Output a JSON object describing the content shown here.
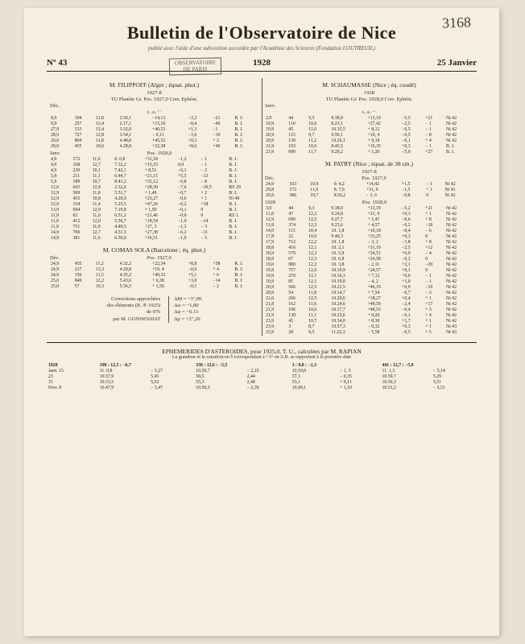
{
  "handwritten_number": "3168",
  "masthead": {
    "title": "Bulletin de l'Observatoire de Nice",
    "subtitle": "publié avec l'aide d'une subvention accordée par l'Académie des Sciences (Fondation LOUTREUIL)",
    "stamp_line1": "OBSERVATOIRE",
    "stamp_line2": "DE PARIS",
    "issue_no": "Nº 43",
    "year": "1928",
    "date": "25 Janvier"
  },
  "left_col": {
    "observer": "M. FILIPPOFF (Alger ; équat. phot.)",
    "year1": "1927-8",
    "header1": "TU  Planète  Gr.      Pos. 1927,0        Corr.     Ephém.",
    "month1": "Déc.",
    "units1": "h. m.       °   ′",
    "rows1": [
      [
        "9,9",
        "194",
        "11,8",
        "2.50,1",
        "−14,13",
        "−3,2",
        "−21",
        "B. J."
      ],
      [
        "9,9",
        "257",
        "13,4",
        "2.17,1",
        "+15,10",
        "−8,4",
        "−49",
        "B. J."
      ],
      [
        "27,9",
        "533",
        "13,4",
        "3.32,0",
        "+40,53",
        "+1,3",
        "−1",
        "B. J."
      ],
      [
        "28,9",
        "727",
        "12,8",
        "3.54,1",
        "− 0,11",
        "−3,6",
        "−10",
        "B. J."
      ],
      [
        "29,0",
        "804",
        "11,8",
        "4.48,0",
        "+45,52",
        "+0,3",
        "+ 2",
        "B. J."
      ],
      [
        "29,0",
        "455",
        "10,6",
        "4.28,8",
        "+22,38",
        "+8,6",
        "+49",
        "B. J."
      ]
    ],
    "month2": "Janv.",
    "poslabel2": "Pos. 1928,0",
    "rows2": [
      [
        "4,9",
        "172",
        "11,6",
        "8. 0,8",
        "+31,18",
        "−1,2",
        "− 1",
        "B. J."
      ],
      [
        "4,9",
        "168",
        "12,7",
        "7.32,2",
        "+15,15",
        "0,0",
        "− 1",
        "B. J."
      ],
      [
        "4,9",
        "230",
        "10,1",
        "7.42,1",
        "+ 8,51",
        "−6,1",
        "− 2",
        "B. J."
      ],
      [
        "5,9",
        "211",
        "11,1",
        "6.44,7",
        "+21,15",
        "+5,5",
        "−13",
        "B. J."
      ],
      [
        "5,9",
        "189",
        "10,7",
        "8.41,2",
        "+32,12",
        "−0,8",
        "− 8",
        "B. J."
      ],
      [
        "12,0",
        "665",
        "12,8",
        "2.32,6",
        "+28,39",
        "−7,6",
        "−10,5",
        "BZ 29"
      ],
      [
        "12,9",
        "509",
        "11,8",
        "5.51,7",
        "+ 1,49",
        "−0,7",
        "+ 2",
        "B. J."
      ],
      [
        "12,9",
        "455",
        "10,8",
        "4.20,9",
        "+23,27",
        "−0,6",
        "+ 1",
        "Ni 49"
      ],
      [
        "12,9",
        "154",
        "11,4",
        "5.25,5",
        "+47,26",
        "−0,2",
        "+18",
        "B. J."
      ],
      [
        "13,9",
        "694",
        "12,9",
        "7.19,8",
        "+ 1,50",
        "−0,1",
        "0",
        "B. J."
      ],
      [
        "11,9",
        "62",
        "11,0",
        "6.51,2",
        "+21,46",
        "−0,0",
        "0",
        "RZ 1"
      ],
      [
        "11,9",
        "412",
        "12,0",
        "5.36,7",
        "+18,54",
        "−1,9",
        "−14",
        "B. J."
      ],
      [
        "11,9",
        "751",
        "11,0",
        "4.49,5",
        "+27, 3",
        "−1,3",
        "− 3",
        "B. J."
      ],
      [
        "14,9",
        "706",
        "12,7",
        "4.51,3",
        "+27,38",
        "−6,2",
        "−11",
        "B. J."
      ],
      [
        "14,9",
        "381",
        "11,6",
        "6.50,0",
        "+16,51",
        "−1,9",
        "− 5",
        "B. J."
      ]
    ],
    "observer2": "M. COMAS SOLA (Barcelone ; éq. phot.)",
    "month3": "Déc.",
    "poslabel3": "Pos. 1927,0",
    "rows3": [
      [
        "24,9",
        "455",
        "11,2",
        "4.32,2",
        "+22,34",
        "+8,8",
        "+58",
        "R. J."
      ],
      [
        "24,9",
        "237",
        "13,3",
        "4.20,8",
        "+19, 4",
        "−0,0",
        "+ 4",
        "B. J."
      ],
      [
        "24,9",
        "150",
        "11,5",
        "4.35,2",
        "+49,32",
        "+5,1",
        "+ 6",
        "B. J."
      ],
      [
        "25,0",
        "849",
        "12,2",
        "5.43,6",
        "+ 6,38",
        "+3,0",
        "−14",
        "B. J."
      ],
      [
        "25,0",
        "57",
        "10,3",
        "5.56,5",
        "+ 1,56",
        "−0,1",
        "− 2",
        "B. J."
      ]
    ],
    "corrections": {
      "line1": "Corrections approchées",
      "line2": "des éléments (K. P. 1925)",
      "line3": "de 976",
      "line4": "par M. GONNESSIAT",
      "vals": [
        "ΔM = +1º,90",
        "Δω = −1,80",
        "Δφ = −0.13",
        "Δμ = +2″,20"
      ]
    }
  },
  "right_col": {
    "observer": "M. SCHAUMASSE (Nice ; éq. coudé)",
    "year1": "1928",
    "header1": "TU  Planète  Gr.      Pos. 1928,0        Corr.     Ephém.",
    "month1": "Janv.",
    "units1": "h. m.       °   ′",
    "rows1": [
      [
        "2,9",
        "44",
        "9,5",
        "9.38,0",
        "+13,19",
        "−5,5",
        "+21",
        "Ni 42"
      ],
      [
        "19,9",
        "110",
        "10,6",
        "8.23,1",
        "+27,42",
        "−2,5",
        "− 1",
        "Ni 42"
      ],
      [
        "19,9",
        "45",
        "11,0",
        "10.35,5",
        "+ 8,12",
        "−6,5",
        "− 1",
        "Ni 42"
      ],
      [
        "20,9",
        "115",
        "9,7",
        "9.56,1",
        "+10, 4",
        "−0,5",
        "− 8",
        "Ni 42"
      ],
      [
        "20,9",
        "130",
        "11,2",
        "10.26,1",
        "+ 9,18",
        "−0,1",
        "+ 4",
        "Ni 42"
      ],
      [
        "21,9",
        "103",
        "10,6",
        "8.45,5",
        "+16,35",
        "+0,3",
        "− 1",
        "B. J."
      ],
      [
        "23,9",
        "690",
        "11,7",
        "9.20,2",
        "+ 1,20",
        "−5,0",
        "+27",
        "B. J."
      ]
    ],
    "observer2": "M. PATRY (Nice ; équat. de 38 cm.)",
    "year2": "1927-8",
    "month2": "Déc.",
    "poslabel2": "Pos. 1927,0",
    "rows2": [
      [
        "24,9",
        "103",
        "10,9",
        "9. 4,2",
        "+14,42",
        "+1,5",
        "− 1",
        "Ni 42"
      ],
      [
        "29,8",
        "172",
        "11,0",
        "8. 7,6",
        "+31, 9",
        "−1,5",
        "+ 1",
        "Ni 41"
      ],
      [
        "29,9",
        "386",
        "10,7",
        "8.56,2",
        "− 3, 6",
        "−0,8",
        "0",
        "Ni 42"
      ]
    ],
    "month3": "1928",
    "poslabel3": "Pos. 1928,0",
    "rows3": [
      [
        "3,0",
        "44",
        "9,3",
        "9.38,0",
        "+13,19",
        "−5,2",
        "+21",
        "Ni 42"
      ],
      [
        "11,8",
        "47",
        "12,2",
        "9.24,8",
        "+21, 9",
        "+0,3",
        "+ 1",
        "Ni 42"
      ],
      [
        "12,9",
        "690",
        "12,5",
        "9.27,7",
        "+ 1,47",
        "−0,6",
        "+ 8",
        "Ni 42"
      ],
      [
        "13,9",
        "374",
        "12,3",
        "9.23,6",
        "+ 4,57",
        "−0,2",
        "−18",
        "Ni 42"
      ],
      [
        "14,0",
        "115",
        "10,4",
        "10. 1,8",
        "+10,18",
        "−0,4",
        "− 6",
        "Ni 42"
      ],
      [
        "17,8",
        "22",
        "10,0",
        "9.40,3",
        "+33,25",
        "+0,3",
        "0",
        "Ni 42"
      ],
      [
        "17,9",
        "712",
        "12,2",
        "10. 1,8",
        "− 3, 2",
        "−1,8",
        "+ 8",
        "Ni 42"
      ],
      [
        "18,8",
        "416",
        "12,1",
        "10. 2,1",
        "+31,19",
        "−2,5",
        "+12",
        "Ni 42"
      ],
      [
        "18,9",
        "579",
        "12,2",
        "10. 5,9",
        "+24,51",
        "+0,9",
        "− 4",
        "Ni 42"
      ],
      [
        "18,9",
        "67",
        "12,3",
        "10. 6,8",
        "+24,58",
        "−0,2",
        "0",
        "Ni 42"
      ],
      [
        "19,0",
        "980",
        "12,2",
        "10. 3,8",
        "− 2,11",
        "+2,1",
        "−20",
        "Ni 42"
      ],
      [
        "19,8",
        "757",
        "12,6",
        "10.10,9",
        "+24,57",
        "+0,1",
        "0",
        "Ni 42"
      ],
      [
        "19,9",
        "270",
        "12,1",
        "10.16,3",
        "+ 7,12",
        "+0,0",
        "− 1",
        "Ni 42"
      ],
      [
        "19,9",
        "85",
        "12,1",
        "10.19,0",
        "− 4, 2",
        "+1,0",
        "− 1",
        "Ni 42"
      ],
      [
        "20,9",
        "566",
        "12,5",
        "10.22,5",
        "+46,19",
        "+0,9",
        "−10",
        "Ni 42"
      ],
      [
        "20,9",
        "54",
        "11,8",
        "10.14,7",
        "+ 7,54",
        "−0,7",
        "− 3",
        "Ni 42"
      ],
      [
        "21,0",
        "266",
        "12,5",
        "10.20,6",
        "+18,27",
        "+0,4",
        "+ 1",
        "Ni 42"
      ],
      [
        "21,8",
        "162",
        "11,6",
        "10.24,6",
        "+49,59",
        "−2,4",
        "+17",
        "Ni 42"
      ],
      [
        "21,9",
        "196",
        "10,6",
        "10.37,7",
        "+48,53",
        "−0,4",
        "+ 3",
        "Ni 42"
      ],
      [
        "21,9",
        "130",
        "11,1",
        "10.25,6",
        "+ 9,26",
        "−0,1",
        "+ 4",
        "Ni 42"
      ],
      [
        "23,9",
        "45",
        "10,7",
        "10.34,0",
        "+ 8,30",
        "+1,7",
        "+ 1",
        "Ni 42"
      ],
      [
        "23,9",
        "3",
        "8,7",
        "10.57,3",
        "− 0,32",
        "+0,3",
        "+ 1",
        "Ni 43"
      ],
      [
        "23,9",
        "28",
        "9,5",
        "11.22,3",
        "− 5,58",
        "−0,5",
        "+ 5",
        "Ni 43"
      ]
    ]
  },
  "ephemerides": {
    "title": "EPHEMERIDES D'ASTEROIDES, pour 1925,0, T. U., calculées par M. RAPIAN",
    "subtitle": "La grandeur et la variation en δ correspondant à +1ᵐ en A.R. se rapportent à la première date",
    "year": "1928",
    "headers": [
      "198 : 12,5 : −6,7",
      "336 : 12,6 : −5,5",
      "3 : 8,8 : −1,3",
      "441 : 12,7 : −5,9"
    ],
    "rows": [
      [
        "Janv. 15",
        "11. 0,8",
        "− 5,27",
        "10.59,7",
        "− 2,25",
        "10,59,0",
        "− 1, 5",
        "11. 1,3",
        "− 5,14"
      ],
      [
        "23",
        "10.57,9",
        "  5,45",
        "58,5",
        "  2,44",
        "57,3",
        "− 0,35",
        "10.59,7",
        "  5,29"
      ],
      [
        "31",
        "10.53,5",
        "  5,52",
        "55,3",
        "  2,48",
        "53,1",
        "+ 0,11",
        "10.56,3",
        "  5,51"
      ],
      [
        "Févr. 8",
        "10.47,9",
        "− 5,47",
        "10.50,5",
        "− 2,39",
        "10,49,1",
        "+ 1,10",
        "10.51,2",
        "− 5,51"
      ]
    ]
  }
}
